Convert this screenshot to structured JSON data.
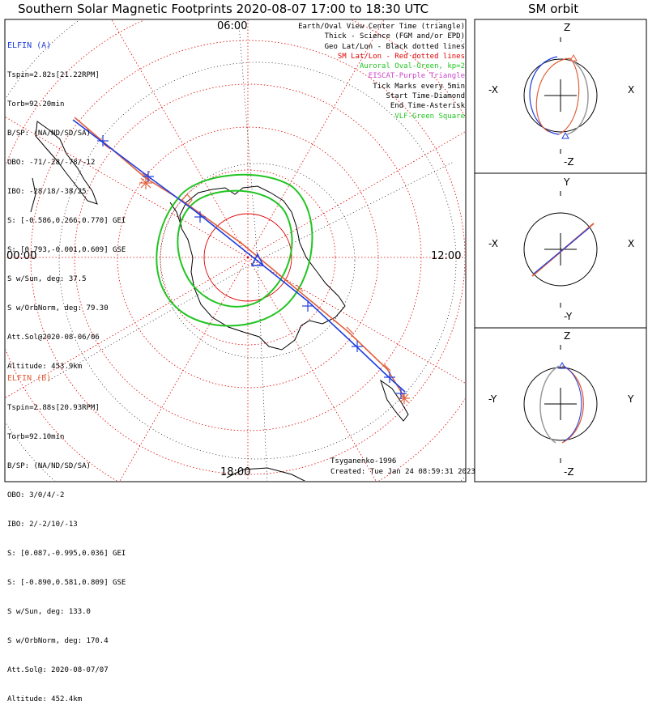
{
  "title": "Southern Solar Magnetic Footprints 2020-08-07 17:00 to 18:30 UTC",
  "orbit_title": "SM orbit",
  "mlt_labels": {
    "top": "06:00",
    "left": "00:00",
    "right": "12:00",
    "bottom": "18:00"
  },
  "elfin_a": {
    "header": "ELFIN (A)",
    "lines": [
      "Tspin=2.82s[21.22RPM]",
      "Torb=92.20min",
      "B/SP: (NA/ND/SD/SA)",
      "OBO: -71/-28/-78/-12",
      "IBO: -28/18/-38/25",
      "S: [-0.586,0.266,0.770] GEI",
      "S: [0.793,-0.001,0.609] GSE",
      "S w/Sun, deg: 37.5",
      "S w/OrbNorm, deg: 79.30",
      "Att.Sol@2020-08-06/06",
      "Altitude: 453.9km"
    ],
    "color": "#1f3fe0"
  },
  "elfin_b": {
    "header": "ELFIN (B)",
    "lines": [
      "Tspin=2.88s[20.93RPM]",
      "Torb=92.10min",
      "B/SP: (NA/ND/SD/SA)",
      "OBO: 3/0/4/-2",
      "IBO: 2/-2/10/-13",
      "S: [0.087,-0.995,0.036] GEI",
      "S: [-0.890,0.581,0.809] GSE",
      "S w/Sun, deg: 133.0",
      "S w/OrbNorm, deg: 170.4",
      "Att.Sol@: 2020-08-07/07",
      "Altitude: 452.4km"
    ],
    "color": "#e0603c"
  },
  "legend": [
    {
      "text": "Earth/Oval View Center Time (triangle)",
      "color": "#000000"
    },
    {
      "text": "Thick - Science (FGM and/or EPD)",
      "color": "#000000"
    },
    {
      "text": "Geo Lat/Lon - Black dotted lines",
      "color": "#000000"
    },
    {
      "text": "SM Lat/Lon - Red dotted lines",
      "color": "#e00000"
    },
    {
      "text": "Auroral Oval-Green, kp=2",
      "color": "#22c422"
    },
    {
      "text": "EISCAT-Purple Triangle",
      "color": "#cc44cc"
    },
    {
      "text": "Tick Marks every 5min",
      "color": "#000000"
    },
    {
      "text": "Start Time-Diamond",
      "color": "#000000"
    },
    {
      "text": "End Time-Asterisk",
      "color": "#000000"
    },
    {
      "text": "VLF-Green Square",
      "color": "#22c422"
    }
  ],
  "footer": {
    "model": "Tsyganenko-1996",
    "created": "Created: Tue Jan 24 08:59:31 2023"
  },
  "orbit_panels": [
    {
      "top": "Z",
      "bottom": "-Z",
      "left": "-X",
      "right": "X"
    },
    {
      "top": "Y",
      "bottom": "-Y",
      "left": "-X",
      "right": "X"
    },
    {
      "top": "Z",
      "bottom": "-Z",
      "left": "-Y",
      "right": "Y"
    }
  ],
  "colors": {
    "elfin_a": "#1f3fe0",
    "elfin_b": "#e0603c",
    "oval": "#22c422",
    "sm_grid": "#e00000",
    "geo_grid": "#000000"
  }
}
